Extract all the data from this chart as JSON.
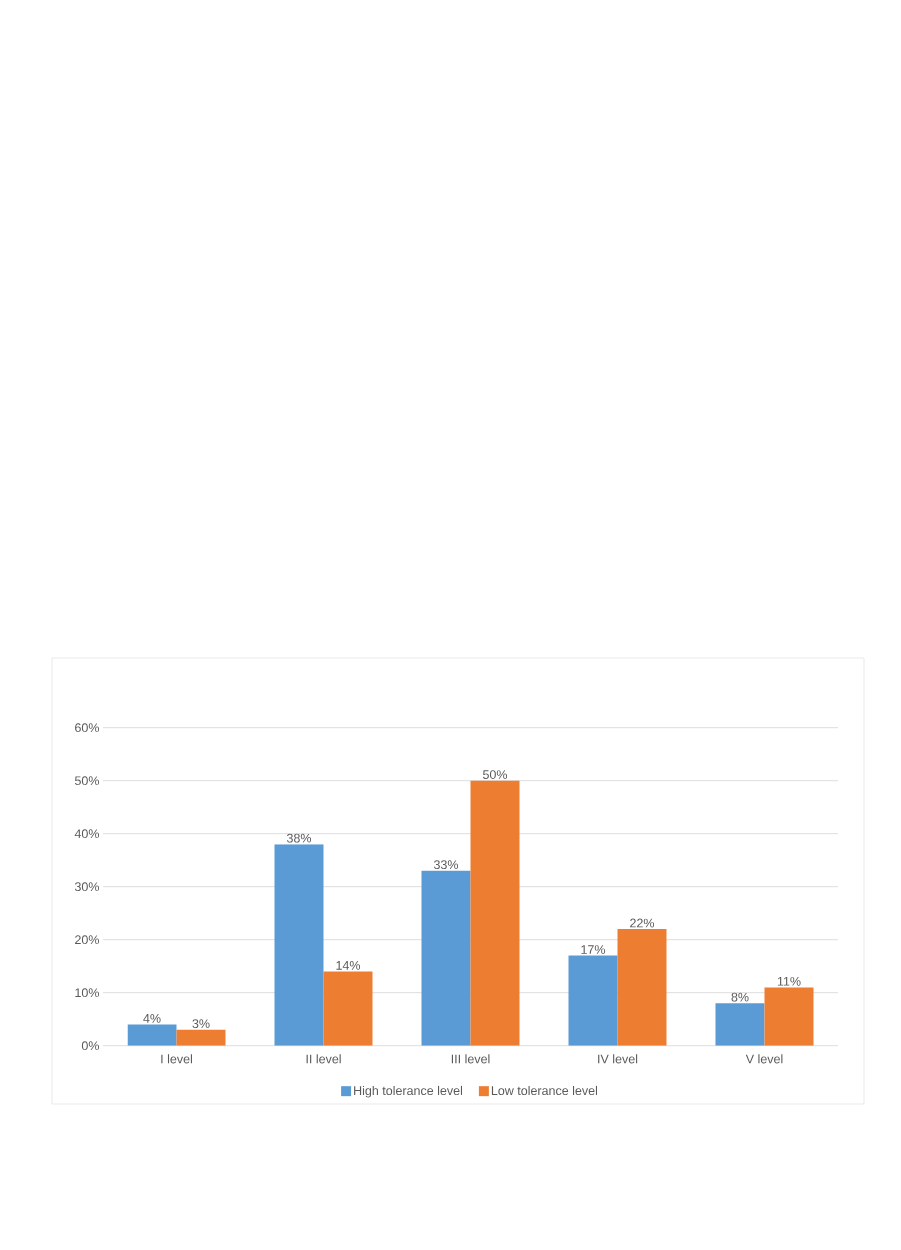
{
  "chart_data": {
    "type": "bar",
    "categories": [
      "I level",
      "II level",
      "III level",
      "IV level",
      "V level"
    ],
    "series": [
      {
        "name": "High tolerance level",
        "color": "#5b9bd5",
        "values": [
          4,
          38,
          33,
          17,
          8
        ],
        "value_labels": [
          "4%",
          "38%",
          "33%",
          "17%",
          "8%"
        ]
      },
      {
        "name": "Low tolerance level",
        "color": "#ed7d31",
        "values": [
          3,
          14,
          50,
          22,
          11
        ],
        "value_labels": [
          "3%",
          "14%",
          "50%",
          "22%",
          "11%"
        ]
      }
    ],
    "ylim": [
      0,
      60
    ],
    "yticks": [
      {
        "value": 0,
        "label": "0%"
      },
      {
        "value": 10,
        "label": "10%"
      },
      {
        "value": 20,
        "label": "20%"
      },
      {
        "value": 30,
        "label": "30%"
      },
      {
        "value": 40,
        "label": "40%"
      },
      {
        "value": 50,
        "label": "50%"
      },
      {
        "value": 60,
        "label": "60%"
      }
    ],
    "grid": "y",
    "legend": "bottom"
  }
}
